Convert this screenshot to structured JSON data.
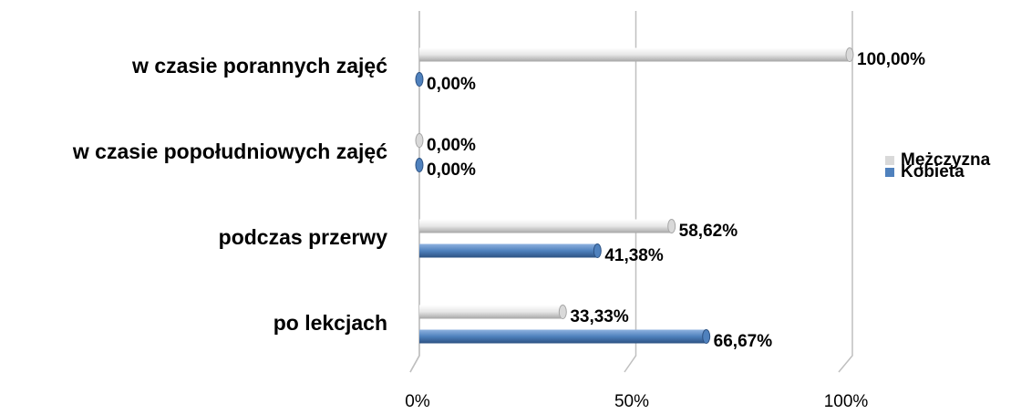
{
  "chart_data": {
    "type": "bar",
    "orientation": "horizontal",
    "categories": [
      "w czasie porannych zajęć",
      "w czasie popołudniowych zajęć",
      "podczas przerwy",
      "po lekcjach"
    ],
    "series": [
      {
        "name": "Mężczyzna",
        "color": "#d9d9d9",
        "values": [
          100,
          0,
          58.62,
          33.33
        ],
        "value_labels": [
          "100,00%",
          "0,00%",
          "58,62%",
          "33,33%"
        ]
      },
      {
        "name": "Kobieta",
        "color": "#4f81bd",
        "values": [
          0,
          0,
          41.38,
          66.67
        ],
        "value_labels": [
          "0,00%",
          "0,00%",
          "41,38%",
          "66,67%"
        ]
      }
    ],
    "xlim": [
      0,
      100
    ],
    "xticks": [
      {
        "value": 0,
        "label": "0%"
      },
      {
        "value": 50,
        "label": "50%"
      },
      {
        "value": 100,
        "label": "100%"
      }
    ],
    "grid": true,
    "legend": "right"
  }
}
